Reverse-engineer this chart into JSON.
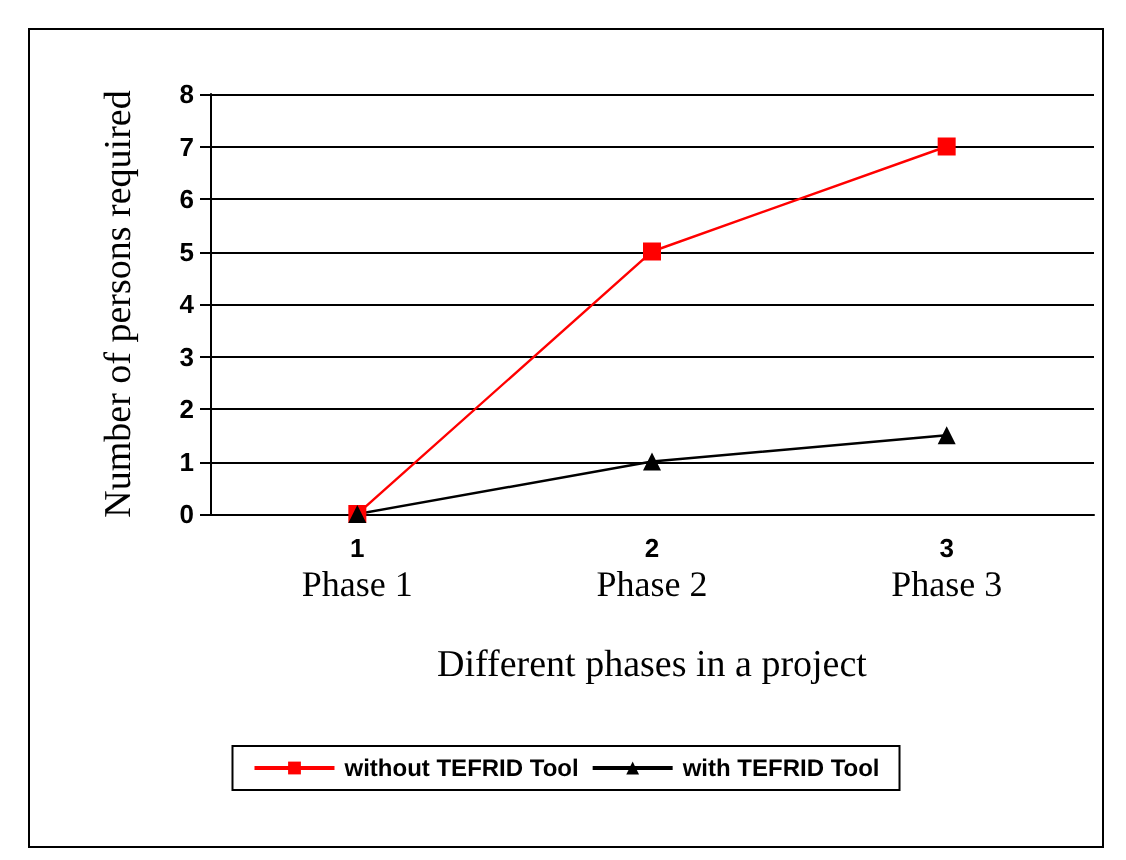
{
  "chart_data": {
    "type": "line",
    "xlabel": "Different phases in a project",
    "ylabel": "Number of persons required",
    "categories": [
      "1\nPhase 1",
      "2\nPhase 2",
      "3\nPhase 3"
    ],
    "series": [
      {
        "name": "without TEFRID Tool",
        "color": "#ff0000",
        "values": [
          0,
          5,
          7
        ],
        "marker": "square"
      },
      {
        "name": "with TEFRID Tool",
        "color": "#000000",
        "values": [
          0,
          1,
          1.5
        ],
        "marker": "triangle"
      }
    ],
    "ylim": [
      0,
      8
    ],
    "yticks": [
      0,
      1,
      2,
      3,
      4,
      5,
      6,
      7,
      8
    ],
    "grid": "y",
    "legend": "bottom",
    "line_style": "solid"
  }
}
